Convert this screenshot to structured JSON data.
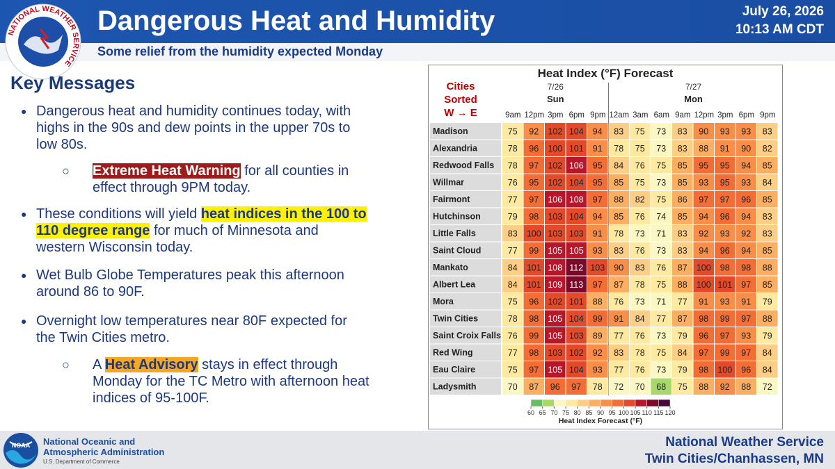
{
  "header": {
    "title": "Dangerous Heat and Humidity",
    "subtitle": "Some relief from the humidity expected Monday",
    "date": "July 26, 2026",
    "time": "10:13 AM CDT",
    "logo_text": "NATIONAL WEATHER SERVICE"
  },
  "key_messages": {
    "title": "Key Messages",
    "bullet1": {
      "text": "Dangerous heat and humidity continues today, with highs in the 90s and dew points in the upper 70s to low 80s.",
      "sub": {
        "highlight": "Extreme Heat Warning",
        "rest": " for all counties in effect through 9PM today."
      }
    },
    "bullet2": {
      "lead": "These conditions will yield ",
      "highlight": "heat indices in the 100 to 110 degree range",
      "rest": " for much of Minnesota and western Wisconsin today."
    },
    "bullet3": {
      "text": "Wet Bulb Globe Temperatures peak this afternoon around 86 to 90F."
    },
    "bullet4": {
      "text": "Overnight low temperatures near 80F expected for the Twin Cities metro.",
      "sub": {
        "lead": "A ",
        "highlight": "Heat Advisory",
        "rest": " stays in effect through Monday for the TC Metro with afternoon heat indices of 95-100F."
      }
    }
  },
  "table": {
    "title": "Heat Index (°F) Forecast",
    "corner": [
      "Cities",
      "Sorted",
      "W → E"
    ],
    "days": [
      {
        "date": "7/26",
        "name": "Sun",
        "hours": [
          "9am",
          "12pm",
          "3pm",
          "6pm",
          "9pm"
        ]
      },
      {
        "date": "7/27",
        "name": "Mon",
        "hours": [
          "12am",
          "3am",
          "6am",
          "9am",
          "12pm",
          "3pm",
          "6pm",
          "9pm"
        ]
      }
    ],
    "rows": [
      {
        "city": "Madison",
        "values": [
          75,
          92,
          102,
          104,
          94,
          83,
          75,
          73,
          83,
          90,
          93,
          93,
          83
        ]
      },
      {
        "city": "Alexandria",
        "values": [
          78,
          96,
          100,
          101,
          91,
          78,
          75,
          73,
          83,
          88,
          91,
          90,
          82
        ]
      },
      {
        "city": "Redwood Falls",
        "values": [
          78,
          97,
          102,
          106,
          95,
          84,
          76,
          75,
          85,
          95,
          95,
          94,
          85
        ]
      },
      {
        "city": "Willmar",
        "values": [
          76,
          95,
          102,
          104,
          95,
          85,
          75,
          73,
          85,
          93,
          95,
          93,
          84
        ]
      },
      {
        "city": "Fairmont",
        "values": [
          77,
          97,
          106,
          108,
          97,
          88,
          82,
          75,
          86,
          97,
          97,
          96,
          85
        ]
      },
      {
        "city": "Hutchinson",
        "values": [
          79,
          98,
          103,
          104,
          94,
          85,
          76,
          74,
          85,
          94,
          96,
          94,
          83
        ]
      },
      {
        "city": "Little Falls",
        "values": [
          83,
          100,
          103,
          103,
          91,
          78,
          73,
          71,
          83,
          92,
          93,
          92,
          83
        ]
      },
      {
        "city": "Saint Cloud",
        "values": [
          77,
          99,
          105,
          105,
          93,
          83,
          76,
          73,
          83,
          94,
          96,
          94,
          85
        ]
      },
      {
        "city": "Mankato",
        "values": [
          84,
          101,
          108,
          112,
          103,
          90,
          83,
          76,
          87,
          100,
          98,
          98,
          88
        ]
      },
      {
        "city": "Albert Lea",
        "values": [
          84,
          101,
          109,
          113,
          97,
          87,
          78,
          75,
          88,
          100,
          101,
          97,
          85
        ]
      },
      {
        "city": "Mora",
        "values": [
          75,
          96,
          102,
          101,
          88,
          76,
          73,
          71,
          77,
          91,
          93,
          91,
          79
        ]
      },
      {
        "city": "Twin Cities",
        "values": [
          78,
          98,
          105,
          104,
          99,
          91,
          84,
          77,
          87,
          98,
          99,
          97,
          88
        ]
      },
      {
        "city": "Saint Croix Falls",
        "values": [
          76,
          99,
          105,
          103,
          89,
          77,
          76,
          73,
          79,
          96,
          97,
          93,
          79
        ]
      },
      {
        "city": "Red Wing",
        "values": [
          77,
          98,
          103,
          102,
          92,
          83,
          78,
          75,
          84,
          97,
          99,
          97,
          84
        ]
      },
      {
        "city": "Eau Claire",
        "values": [
          75,
          97,
          105,
          104,
          93,
          77,
          76,
          73,
          79,
          98,
          100,
          96,
          84
        ]
      },
      {
        "city": "Ladysmith",
        "values": [
          70,
          87,
          96,
          97,
          78,
          72,
          70,
          68,
          75,
          88,
          92,
          88,
          72
        ]
      }
    ],
    "colorbar": {
      "ticks": [
        60,
        65,
        70,
        75,
        80,
        85,
        90,
        95,
        100,
        105,
        110,
        115,
        120
      ],
      "colors": [
        "#66bd63",
        "#a6d96a",
        "#fbf7c2",
        "#fde9a0",
        "#fdcf86",
        "#fcae61",
        "#f98e48",
        "#f46d35",
        "#e34a2a",
        "#b8162a",
        "#7a0a28",
        "#45083d"
      ],
      "label": "Heat Index Forecast (°F)"
    }
  },
  "footer": {
    "noaa_logo": "NOAA",
    "org": [
      "National Oceanic and",
      "Atmospheric Administration",
      "U.S. Department of Commerce"
    ],
    "office": [
      "National Weather Service",
      "Twin Cities/Chanhassen, MN"
    ]
  }
}
